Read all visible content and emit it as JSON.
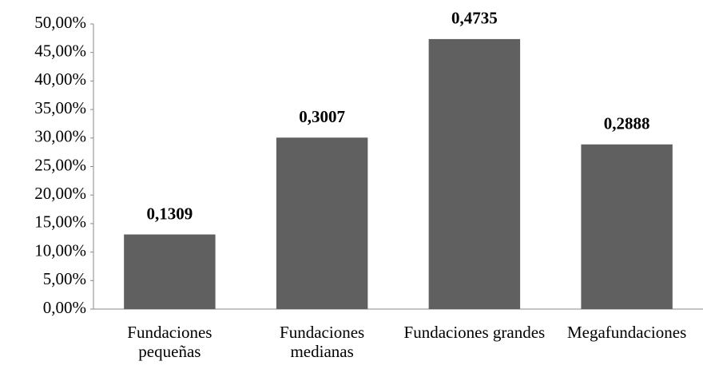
{
  "chart_data": {
    "type": "bar",
    "categories": [
      "Fundaciones pequeñas",
      "Fundaciones medianas",
      "Fundaciones grandes",
      "Megafundaciones"
    ],
    "values": [
      13.09,
      30.07,
      47.35,
      28.88
    ],
    "value_labels": [
      "0,1309",
      "0,3007",
      "0,4735",
      "0,2888"
    ],
    "color": "#606060",
    "ylim": [
      0,
      50
    ],
    "yticks": [
      {
        "value": 0,
        "label": "0,00%"
      },
      {
        "value": 5,
        "label": "5,00%"
      },
      {
        "value": 10,
        "label": "10,00%"
      },
      {
        "value": 15,
        "label": "15,00%"
      },
      {
        "value": 20,
        "label": "20,00%"
      },
      {
        "value": 25,
        "label": "25,00%"
      },
      {
        "value": 30,
        "label": "30,00%"
      },
      {
        "value": 35,
        "label": "35,00%"
      },
      {
        "value": 40,
        "label": "40,00%"
      },
      {
        "value": 45,
        "label": "45,00%"
      },
      {
        "value": 50,
        "label": "50,00%"
      }
    ],
    "grid": false
  }
}
